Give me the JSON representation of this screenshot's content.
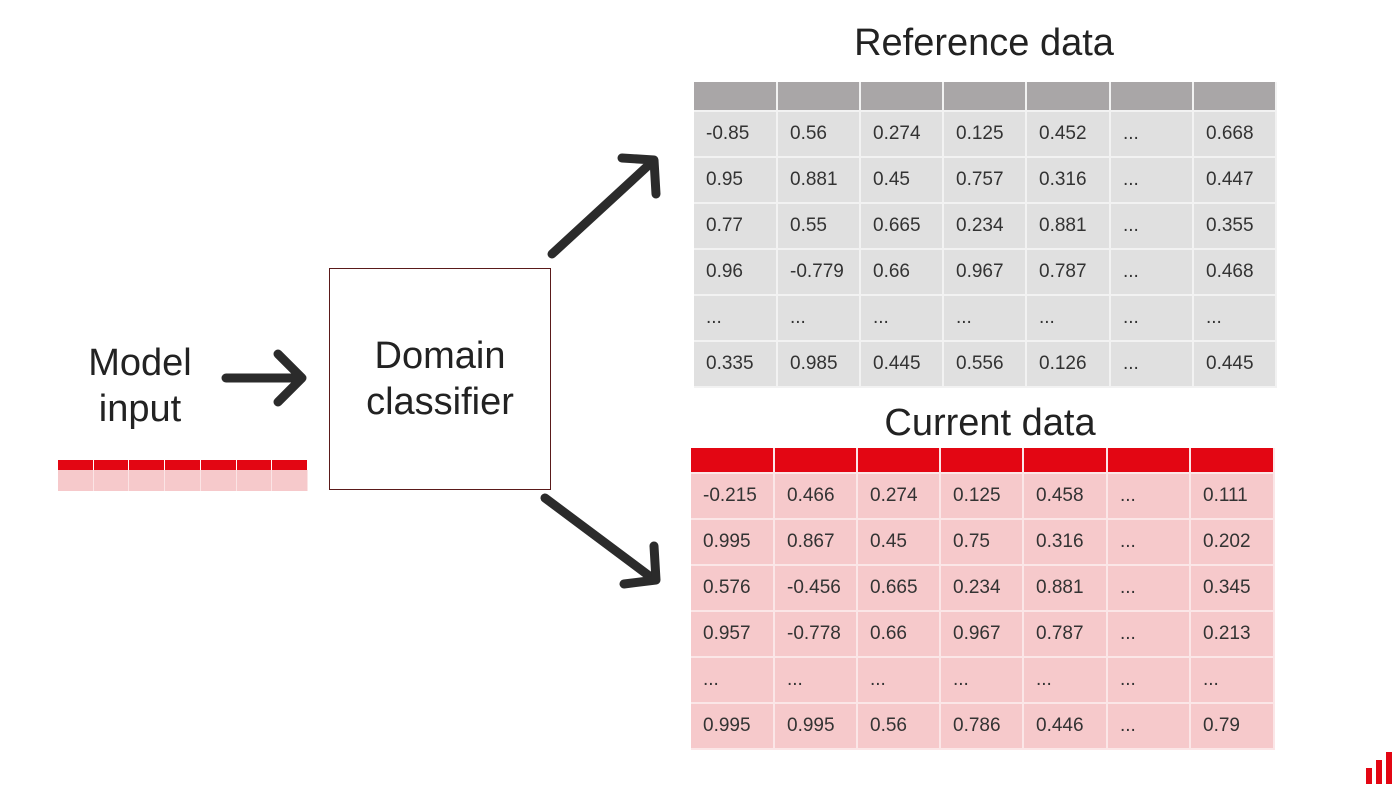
{
  "model_input": {
    "line1": "Model",
    "line2": "input"
  },
  "classifier": {
    "line1": "Domain",
    "line2": "classifier"
  },
  "reference": {
    "title": "Reference data",
    "rows": [
      [
        "-0.85",
        "0.56",
        "0.274",
        "0.125",
        "0.452",
        "...",
        "0.668"
      ],
      [
        "0.95",
        "0.881",
        "0.45",
        "0.757",
        "0.316",
        "...",
        "0.447"
      ],
      [
        "0.77",
        "0.55",
        "0.665",
        "0.234",
        "0.881",
        "...",
        "0.355"
      ],
      [
        "0.96",
        "-0.779",
        "0.66",
        "0.967",
        "0.787",
        "...",
        "0.468"
      ],
      [
        "...",
        "...",
        "...",
        "...",
        "...",
        "...",
        "..."
      ],
      [
        "0.335",
        "0.985",
        "0.445",
        "0.556",
        "0.126",
        "...",
        "0.445"
      ]
    ]
  },
  "current": {
    "title": "Current data",
    "rows": [
      [
        "-0.215",
        "0.466",
        "0.274",
        "0.125",
        "0.458",
        "...",
        "0.111"
      ],
      [
        "0.995",
        "0.867",
        "0.45",
        "0.75",
        "0.316",
        "...",
        "0.202"
      ],
      [
        "0.576",
        "-0.456",
        "0.665",
        "0.234",
        "0.881",
        "...",
        "0.345"
      ],
      [
        "0.957",
        "-0.778",
        "0.66",
        "0.967",
        "0.787",
        "...",
        "0.213"
      ],
      [
        "...",
        "...",
        "...",
        "...",
        "...",
        "...",
        "..."
      ],
      [
        "0.995",
        "0.995",
        "0.56",
        "0.786",
        "0.446",
        "...",
        "0.79"
      ]
    ]
  },
  "colors": {
    "accent": "#e30613",
    "reference_fill": "#e0e0e0",
    "current_fill": "#f6c9cb",
    "arrow": "#2b2b2b"
  },
  "icons": {
    "arrow_right": "arrow-right-icon",
    "arrow_up_right": "arrow-up-right-icon",
    "arrow_down_right": "arrow-down-right-icon",
    "logo": "bar-logo-icon"
  }
}
